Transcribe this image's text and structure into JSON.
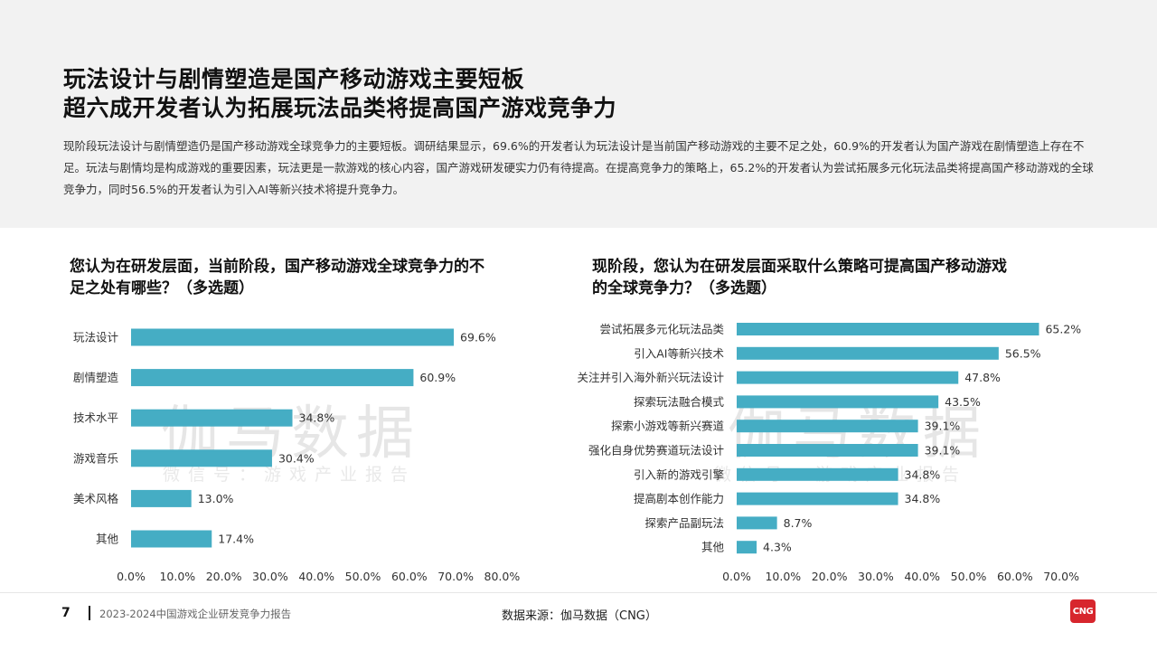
{
  "header": {
    "title_line1": "玩法设计与剧情塑造是国产移动游戏主要短板",
    "title_line2": "超六成开发者认为拓展玩法品类将提高国产游戏竞争力",
    "intro": "现阶段玩法设计与剧情塑造仍是国产移动游戏全球竞争力的主要短板。调研结果显示，69.6%的开发者认为玩法设计是当前国产移动游戏的主要不足之处，60.9%的开发者认为国产游戏在剧情塑造上存在不足。玩法与剧情均是构成游戏的重要因素，玩法更是一款游戏的核心内容，国产游戏研发硬实力仍有待提高。在提高竞争力的策略上，65.2%的开发者认为尝试拓展多元化玩法品类将提高国产移动游戏的全球竞争力，同时56.5%的开发者认为引入AI等新兴技术将提升竞争力。"
  },
  "watermark": {
    "main": "伽马数据",
    "sub": "微信号：游戏产业报告"
  },
  "colors": {
    "bar": "#45adc4",
    "accent": "#d7262d"
  },
  "chart_data": [
    {
      "type": "bar",
      "orientation": "horizontal",
      "title": "您认为在研发层面，当前阶段，国产移动游戏全球竞争力的不足之处有哪些？（多选题）",
      "categories": [
        "玩法设计",
        "剧情塑造",
        "技术水平",
        "游戏音乐",
        "美术风格",
        "其他"
      ],
      "values": [
        69.6,
        60.9,
        34.8,
        30.4,
        13.0,
        17.4
      ],
      "data_labels": [
        "69.6%",
        "60.9%",
        "34.8%",
        "30.4%",
        "13.0%",
        "17.4%"
      ],
      "xlim": [
        0,
        80
      ],
      "xticks": [
        "0.0%",
        "10.0%",
        "20.0%",
        "30.0%",
        "40.0%",
        "50.0%",
        "60.0%",
        "70.0%",
        "80.0%"
      ],
      "grid": false
    },
    {
      "type": "bar",
      "orientation": "horizontal",
      "title": "现阶段，您认为在研发层面采取什么策略可提高国产移动游戏的全球竞争力？（多选题）",
      "categories": [
        "尝试拓展多元化玩法品类",
        "引入AI等新兴技术",
        "关注并引入海外新兴玩法设计",
        "探索玩法融合模式",
        "探索小游戏等新兴赛道",
        "强化自身优势赛道玩法设计",
        "引入新的游戏引擎",
        "提高剧本创作能力",
        "探索产品副玩法",
        "其他"
      ],
      "values": [
        65.2,
        56.5,
        47.8,
        43.5,
        39.1,
        39.1,
        34.8,
        34.8,
        8.7,
        4.3
      ],
      "data_labels": [
        "65.2%",
        "56.5%",
        "47.8%",
        "43.5%",
        "39.1%",
        "39.1%",
        "34.8%",
        "34.8%",
        "8.7%",
        "4.3%"
      ],
      "xlim": [
        0,
        70
      ],
      "xticks": [
        "0.0%",
        "10.0%",
        "20.0%",
        "30.0%",
        "40.0%",
        "50.0%",
        "60.0%",
        "70.0%"
      ],
      "grid": false
    }
  ],
  "footer": {
    "page_number": "7",
    "report_name": "2023-2024中国游戏企业研发竞争力报告",
    "source": "数据来源：伽马数据（CNG）",
    "logo_text": "CNG"
  }
}
